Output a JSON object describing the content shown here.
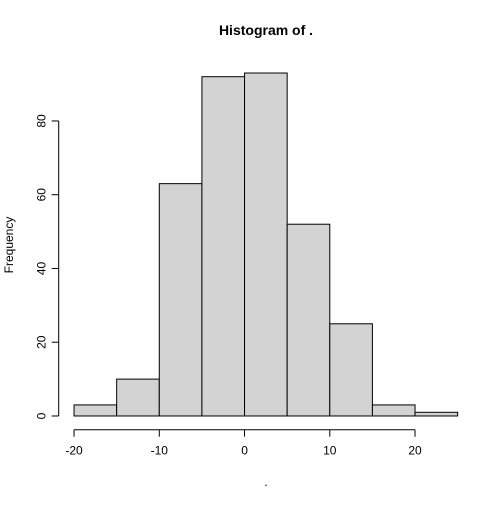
{
  "chart_data": {
    "type": "histogram",
    "title": "Histogram of .",
    "x_label": ".",
    "y_label": "Frequency",
    "bins": [
      -20,
      -15,
      -10,
      -5,
      0,
      5,
      10,
      15,
      20,
      25
    ],
    "values": [
      3,
      10,
      63,
      92,
      93,
      52,
      25,
      3,
      1
    ],
    "color": "#d3d3d3",
    "xlim": [
      -21.8,
      26.8
    ],
    "xticks": [
      -20,
      -10,
      0,
      10,
      20
    ],
    "ylim": [
      -3.72,
      96.72
    ],
    "yticks": [
      0,
      20,
      40,
      60,
      80
    ]
  }
}
